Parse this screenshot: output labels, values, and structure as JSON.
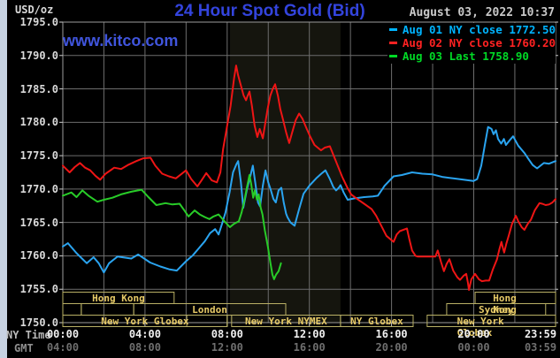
{
  "header": {
    "unit_label": "USD/oz",
    "title": "24 Hour Spot Gold (Bid)",
    "datetime": "August 03, 2022 10:37",
    "watermark": "www.kitco.com"
  },
  "legend": [
    {
      "label": "Aug 01 NY close",
      "value": "1772.50",
      "color": "#00b4ff"
    },
    {
      "label": "Aug 02 NY close",
      "value": "1760.20",
      "color": "#ff2222"
    },
    {
      "label": "Aug 03 Last",
      "value": "1758.90",
      "color": "#00d926"
    }
  ],
  "axis": {
    "ny_caption": "NY Time",
    "gmt_caption": "GMT",
    "y_ticks": [
      "1795.0",
      "1790.0",
      "1785.0",
      "1780.0",
      "1775.0",
      "1770.0",
      "1765.0",
      "1760.0",
      "1755.0",
      "1750.0"
    ],
    "ny_ticks": [
      "00:00",
      "04:00",
      "08:00",
      "12:00",
      "16:00",
      "20:00",
      "23:59"
    ],
    "gmt_ticks": [
      "04:00",
      "08:00",
      "12:00",
      "16:00",
      "20:00",
      "00:00",
      "03:59"
    ]
  },
  "chart_data": {
    "type": "line",
    "title": "24 Hour Spot Gold (Bid)",
    "ylabel": "USD/oz",
    "xlabel": "NY Time (minutes from 00:00)",
    "ylim": [
      1750,
      1795
    ],
    "xlim": [
      0,
      1439
    ],
    "grid": {
      "x_interval_minutes": 120,
      "y_interval": 5
    },
    "shaded_band_minutes": [
      488,
      811
    ],
    "colors": {
      "grid": "#6d6d6d",
      "border": "#9b9b9b",
      "band": "#15150e",
      "session_outline": "#b9b065",
      "legend_backing": "#000000"
    },
    "series": [
      {
        "name": "Aug 01",
        "color": "#2aa4f0",
        "points": [
          [
            0,
            1761.4
          ],
          [
            15,
            1761.9
          ],
          [
            40,
            1760.4
          ],
          [
            70,
            1758.9
          ],
          [
            90,
            1759.8
          ],
          [
            105,
            1758.9
          ],
          [
            120,
            1757.5
          ],
          [
            135,
            1758.9
          ],
          [
            160,
            1759.9
          ],
          [
            200,
            1759.6
          ],
          [
            220,
            1760.2
          ],
          [
            255,
            1759.0
          ],
          [
            285,
            1758.4
          ],
          [
            310,
            1758.0
          ],
          [
            333,
            1757.8
          ],
          [
            360,
            1759.2
          ],
          [
            380,
            1760.1
          ],
          [
            395,
            1761.0
          ],
          [
            415,
            1762.2
          ],
          [
            430,
            1763.4
          ],
          [
            445,
            1764.0
          ],
          [
            455,
            1763.2
          ],
          [
            465,
            1764.8
          ],
          [
            475,
            1766.5
          ],
          [
            487,
            1769.5
          ],
          [
            497,
            1772.5
          ],
          [
            507,
            1773.7
          ],
          [
            512,
            1774.2
          ],
          [
            520,
            1771.0
          ],
          [
            527,
            1767.2
          ],
          [
            538,
            1770.0
          ],
          [
            548,
            1772.0
          ],
          [
            555,
            1773.5
          ],
          [
            562,
            1771.0
          ],
          [
            570,
            1768.0
          ],
          [
            576,
            1767.4
          ],
          [
            584,
            1770.5
          ],
          [
            592,
            1772.8
          ],
          [
            600,
            1771.0
          ],
          [
            607,
            1769.9
          ],
          [
            615,
            1768.5
          ],
          [
            622,
            1768.0
          ],
          [
            630,
            1769.8
          ],
          [
            638,
            1770.2
          ],
          [
            645,
            1768.0
          ],
          [
            652,
            1766.3
          ],
          [
            656,
            1765.8
          ],
          [
            665,
            1765.0
          ],
          [
            672,
            1764.7
          ],
          [
            677,
            1764.5
          ],
          [
            690,
            1767.0
          ],
          [
            703,
            1769.3
          ],
          [
            720,
            1770.5
          ],
          [
            740,
            1771.6
          ],
          [
            755,
            1772.3
          ],
          [
            767,
            1772.8
          ],
          [
            780,
            1771.5
          ],
          [
            790,
            1770.3
          ],
          [
            798,
            1769.8
          ],
          [
            806,
            1770.2
          ],
          [
            811,
            1770.6
          ],
          [
            820,
            1769.5
          ],
          [
            832,
            1768.4
          ],
          [
            850,
            1768.6
          ],
          [
            880,
            1768.8
          ],
          [
            905,
            1768.9
          ],
          [
            920,
            1769.0
          ],
          [
            940,
            1770.5
          ],
          [
            966,
            1771.9
          ],
          [
            990,
            1772.1
          ],
          [
            1020,
            1772.5
          ],
          [
            1050,
            1772.3
          ],
          [
            1080,
            1772.2
          ],
          [
            1110,
            1771.8
          ],
          [
            1140,
            1771.6
          ],
          [
            1170,
            1771.4
          ],
          [
            1199,
            1771.2
          ],
          [
            1210,
            1771.5
          ],
          [
            1222,
            1773.5
          ],
          [
            1232,
            1776.5
          ],
          [
            1242,
            1779.3
          ],
          [
            1252,
            1779.0
          ],
          [
            1258,
            1778.2
          ],
          [
            1265,
            1778.8
          ],
          [
            1271,
            1777.5
          ],
          [
            1280,
            1776.8
          ],
          [
            1288,
            1777.5
          ],
          [
            1294,
            1776.6
          ],
          [
            1305,
            1777.3
          ],
          [
            1315,
            1777.9
          ],
          [
            1330,
            1776.5
          ],
          [
            1348,
            1775.4
          ],
          [
            1360,
            1774.5
          ],
          [
            1372,
            1773.6
          ],
          [
            1385,
            1773.1
          ],
          [
            1395,
            1773.5
          ],
          [
            1405,
            1773.9
          ],
          [
            1420,
            1773.8
          ],
          [
            1439,
            1774.2
          ]
        ]
      },
      {
        "name": "Aug 02",
        "color": "#ee1515",
        "points": [
          [
            0,
            1773.5
          ],
          [
            20,
            1772.5
          ],
          [
            35,
            1773.3
          ],
          [
            50,
            1773.9
          ],
          [
            65,
            1773.2
          ],
          [
            80,
            1772.8
          ],
          [
            95,
            1772.0
          ],
          [
            109,
            1771.4
          ],
          [
            125,
            1772.3
          ],
          [
            150,
            1773.2
          ],
          [
            170,
            1773.0
          ],
          [
            190,
            1773.6
          ],
          [
            215,
            1774.2
          ],
          [
            235,
            1774.6
          ],
          [
            256,
            1774.7
          ],
          [
            270,
            1773.5
          ],
          [
            290,
            1772.3
          ],
          [
            310,
            1771.9
          ],
          [
            330,
            1771.6
          ],
          [
            345,
            1772.2
          ],
          [
            360,
            1772.8
          ],
          [
            375,
            1771.5
          ],
          [
            393,
            1770.4
          ],
          [
            405,
            1771.3
          ],
          [
            419,
            1772.4
          ],
          [
            435,
            1771.3
          ],
          [
            450,
            1771.0
          ],
          [
            460,
            1772.5
          ],
          [
            468,
            1776.0
          ],
          [
            480,
            1779.5
          ],
          [
            490,
            1782.5
          ],
          [
            500,
            1786.5
          ],
          [
            506,
            1788.5
          ],
          [
            512,
            1787.0
          ],
          [
            520,
            1785.5
          ],
          [
            528,
            1784.0
          ],
          [
            535,
            1783.3
          ],
          [
            540,
            1784.0
          ],
          [
            545,
            1784.6
          ],
          [
            552,
            1782.5
          ],
          [
            560,
            1779.5
          ],
          [
            568,
            1777.8
          ],
          [
            575,
            1779.0
          ],
          [
            584,
            1777.6
          ],
          [
            590,
            1779.5
          ],
          [
            598,
            1782.0
          ],
          [
            606,
            1784.0
          ],
          [
            613,
            1785.0
          ],
          [
            620,
            1785.7
          ],
          [
            628,
            1784.0
          ],
          [
            635,
            1782.0
          ],
          [
            643,
            1780.4
          ],
          [
            652,
            1778.5
          ],
          [
            661,
            1776.9
          ],
          [
            670,
            1778.5
          ],
          [
            680,
            1780.3
          ],
          [
            690,
            1781.3
          ],
          [
            700,
            1780.5
          ],
          [
            710,
            1779.3
          ],
          [
            721,
            1778.0
          ],
          [
            735,
            1776.6
          ],
          [
            754,
            1775.8
          ],
          [
            765,
            1776.2
          ],
          [
            780,
            1776.4
          ],
          [
            795,
            1774.5
          ],
          [
            816,
            1771.8
          ],
          [
            830,
            1770.3
          ],
          [
            842,
            1769.2
          ],
          [
            860,
            1768.5
          ],
          [
            880,
            1767.8
          ],
          [
            902,
            1767.0
          ],
          [
            915,
            1766.0
          ],
          [
            930,
            1764.5
          ],
          [
            945,
            1763.0
          ],
          [
            966,
            1762.1
          ],
          [
            975,
            1763.2
          ],
          [
            984,
            1763.7
          ],
          [
            1000,
            1764.0
          ],
          [
            1005,
            1764.1
          ],
          [
            1012,
            1762.5
          ],
          [
            1020,
            1760.8
          ],
          [
            1030,
            1760.0
          ],
          [
            1036,
            1759.9
          ],
          [
            1060,
            1759.9
          ],
          [
            1088,
            1759.9
          ],
          [
            1095,
            1760.8
          ],
          [
            1105,
            1759.0
          ],
          [
            1113,
            1757.7
          ],
          [
            1121,
            1758.8
          ],
          [
            1129,
            1759.5
          ],
          [
            1140,
            1757.8
          ],
          [
            1152,
            1756.8
          ],
          [
            1160,
            1756.4
          ],
          [
            1170,
            1757.0
          ],
          [
            1178,
            1757.3
          ],
          [
            1183,
            1756.0
          ],
          [
            1186,
            1754.9
          ],
          [
            1193,
            1756.5
          ],
          [
            1204,
            1757.3
          ],
          [
            1215,
            1756.5
          ],
          [
            1224,
            1756.2
          ],
          [
            1235,
            1756.3
          ],
          [
            1245,
            1756.3
          ],
          [
            1256,
            1758.0
          ],
          [
            1268,
            1759.5
          ],
          [
            1275,
            1761.0
          ],
          [
            1281,
            1762.1
          ],
          [
            1285,
            1761.2
          ],
          [
            1289,
            1760.5
          ],
          [
            1295,
            1761.8
          ],
          [
            1302,
            1763.0
          ],
          [
            1312,
            1764.8
          ],
          [
            1323,
            1766.0
          ],
          [
            1330,
            1765.2
          ],
          [
            1340,
            1764.3
          ],
          [
            1348,
            1763.9
          ],
          [
            1358,
            1764.8
          ],
          [
            1367,
            1765.4
          ],
          [
            1378,
            1766.8
          ],
          [
            1392,
            1767.9
          ],
          [
            1400,
            1767.8
          ],
          [
            1410,
            1767.6
          ],
          [
            1420,
            1767.7
          ],
          [
            1430,
            1768.0
          ],
          [
            1439,
            1768.5
          ]
        ]
      },
      {
        "name": "Aug 03",
        "color": "#28cc28",
        "points": [
          [
            0,
            1769.0
          ],
          [
            15,
            1769.3
          ],
          [
            25,
            1769.5
          ],
          [
            40,
            1768.8
          ],
          [
            57,
            1769.8
          ],
          [
            75,
            1769.0
          ],
          [
            101,
            1768.1
          ],
          [
            120,
            1768.4
          ],
          [
            145,
            1768.7
          ],
          [
            170,
            1769.2
          ],
          [
            200,
            1769.6
          ],
          [
            230,
            1769.9
          ],
          [
            250,
            1768.8
          ],
          [
            273,
            1767.6
          ],
          [
            300,
            1767.9
          ],
          [
            320,
            1767.7
          ],
          [
            341,
            1767.8
          ],
          [
            355,
            1766.8
          ],
          [
            367,
            1765.9
          ],
          [
            377,
            1766.4
          ],
          [
            385,
            1766.8
          ],
          [
            400,
            1766.2
          ],
          [
            415,
            1765.8
          ],
          [
            428,
            1765.5
          ],
          [
            440,
            1765.9
          ],
          [
            455,
            1766.2
          ],
          [
            470,
            1765.3
          ],
          [
            488,
            1764.3
          ],
          [
            500,
            1764.8
          ],
          [
            514,
            1765.2
          ],
          [
            522,
            1766.5
          ],
          [
            530,
            1768.2
          ],
          [
            538,
            1770.3
          ],
          [
            545,
            1772.1
          ],
          [
            550,
            1770.8
          ],
          [
            556,
            1768.7
          ],
          [
            561,
            1769.8
          ],
          [
            567,
            1768.4
          ],
          [
            572,
            1769.2
          ],
          [
            578,
            1767.2
          ],
          [
            583,
            1766.2
          ],
          [
            590,
            1763.8
          ],
          [
            599,
            1761.3
          ],
          [
            606,
            1759.0
          ],
          [
            612,
            1757.2
          ],
          [
            617,
            1756.5
          ],
          [
            623,
            1757.2
          ],
          [
            630,
            1757.7
          ],
          [
            637,
            1758.9
          ]
        ]
      }
    ],
    "sessions": [
      {
        "row": 1,
        "label": "Hong Kong",
        "t0": 0,
        "t1": 325
      },
      {
        "row": 1,
        "label": "Hong Kong",
        "t0": 1204,
        "t1": 1439
      },
      {
        "row": 2,
        "label": "",
        "t0": 0,
        "t1": 54
      },
      {
        "row": 2,
        "label": "",
        "t0": 54,
        "t1": 207
      },
      {
        "row": 2,
        "label": "London",
        "t0": 207,
        "t1": 651
      },
      {
        "row": 2,
        "label": "Sydney",
        "t0": 1121,
        "t1": 1410
      },
      {
        "row": 3,
        "label": "New York Globex",
        "t0": 0,
        "t1": 480
      },
      {
        "row": 3,
        "label": "",
        "t0": 362,
        "t1": 480
      },
      {
        "row": 3,
        "label": "New York NYMEX",
        "t0": 493,
        "t1": 811
      },
      {
        "row": 3,
        "label": "NY Globex",
        "t0": 811,
        "t1": 1023
      },
      {
        "row": 3,
        "label": "New York Globex",
        "t0": 1064,
        "t1": 1439
      }
    ]
  }
}
